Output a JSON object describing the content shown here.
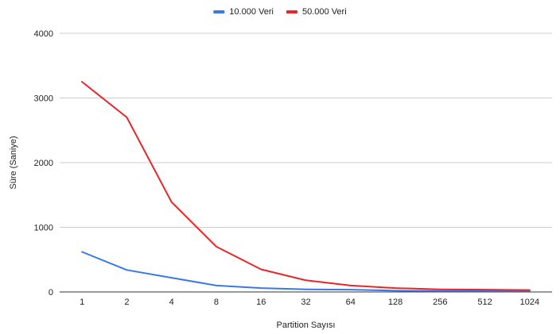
{
  "chart_data": {
    "type": "line",
    "title": "",
    "xlabel": "Partition Sayısı",
    "ylabel": "Süre (Saniye)",
    "categories": [
      "1",
      "2",
      "4",
      "8",
      "16",
      "32",
      "64",
      "128",
      "256",
      "512",
      "1024"
    ],
    "ylim": [
      0,
      4000
    ],
    "yticks": [
      0,
      1000,
      2000,
      3000,
      4000
    ],
    "grid": true,
    "legend_position": "top-center",
    "series": [
      {
        "name": "10.000 Veri",
        "color": "#3a78e7",
        "values": [
          620,
          340,
          220,
          100,
          60,
          40,
          35,
          20,
          15,
          15,
          15
        ]
      },
      {
        "name": "50.000 Veri",
        "color": "#e8262a",
        "values": [
          3250,
          2700,
          1390,
          700,
          350,
          180,
          100,
          60,
          40,
          35,
          30
        ]
      }
    ]
  }
}
